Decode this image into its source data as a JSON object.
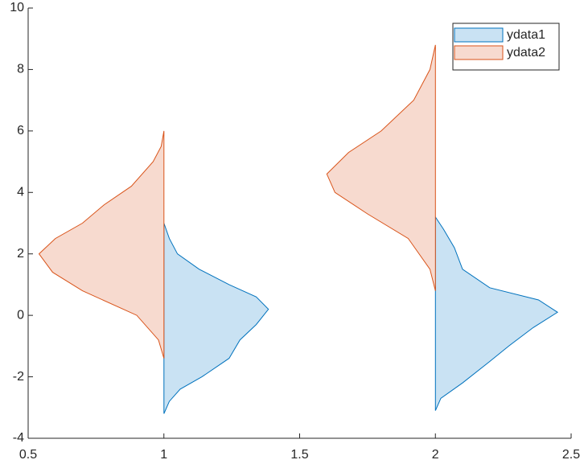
{
  "chart_data": {
    "type": "violin",
    "xlim": [
      0.5,
      2.5
    ],
    "xticks": [
      0.5,
      1,
      1.5,
      2,
      2.5
    ],
    "ylim": [
      -4,
      10
    ],
    "yticks": [
      -4,
      -2,
      0,
      2,
      4,
      6,
      8,
      10
    ],
    "legend": "upper right",
    "series": [
      {
        "name": "ydata1",
        "color": "#c9e2f3",
        "edge_color": "#0072bd",
        "side": "right",
        "violins": [
          {
            "position": 1,
            "y": [
              -3.2,
              -2.8,
              -2.4,
              -2,
              -1.4,
              -0.8,
              -0.3,
              0.2,
              0.6,
              1,
              1.5,
              2,
              2.5,
              3.0
            ],
            "width": [
              0,
              0.02,
              0.06,
              0.14,
              0.24,
              0.28,
              0.34,
              0.385,
              0.34,
              0.24,
              0.13,
              0.05,
              0.02,
              0
            ]
          },
          {
            "position": 2,
            "y": [
              -3.1,
              -2.7,
              -2.2,
              -1.5,
              -1,
              -0.4,
              0.1,
              0.5,
              0.9,
              1.5,
              2.2,
              2.8,
              3.2
            ],
            "width": [
              0,
              0.02,
              0.1,
              0.2,
              0.27,
              0.36,
              0.45,
              0.38,
              0.2,
              0.1,
              0.07,
              0.03,
              0
            ]
          }
        ]
      },
      {
        "name": "ydata2",
        "color": "#f7dacf",
        "edge_color": "#d95319",
        "side": "left",
        "violins": [
          {
            "position": 1,
            "y": [
              -1.4,
              -0.8,
              0,
              0.8,
              1.4,
              2,
              2.5,
              3,
              3.6,
              4.2,
              5,
              5.5,
              6
            ],
            "width": [
              0,
              0.02,
              0.1,
              0.3,
              0.41,
              0.46,
              0.4,
              0.3,
              0.22,
              0.12,
              0.04,
              0.01,
              0
            ]
          },
          {
            "position": 2,
            "y": [
              0.8,
              1.5,
              2.5,
              3.3,
              4,
              4.6,
              5.3,
              6,
              7,
              8,
              8.8
            ],
            "width": [
              0,
              0.02,
              0.1,
              0.25,
              0.37,
              0.4,
              0.32,
              0.2,
              0.08,
              0.02,
              0
            ]
          }
        ]
      }
    ]
  }
}
